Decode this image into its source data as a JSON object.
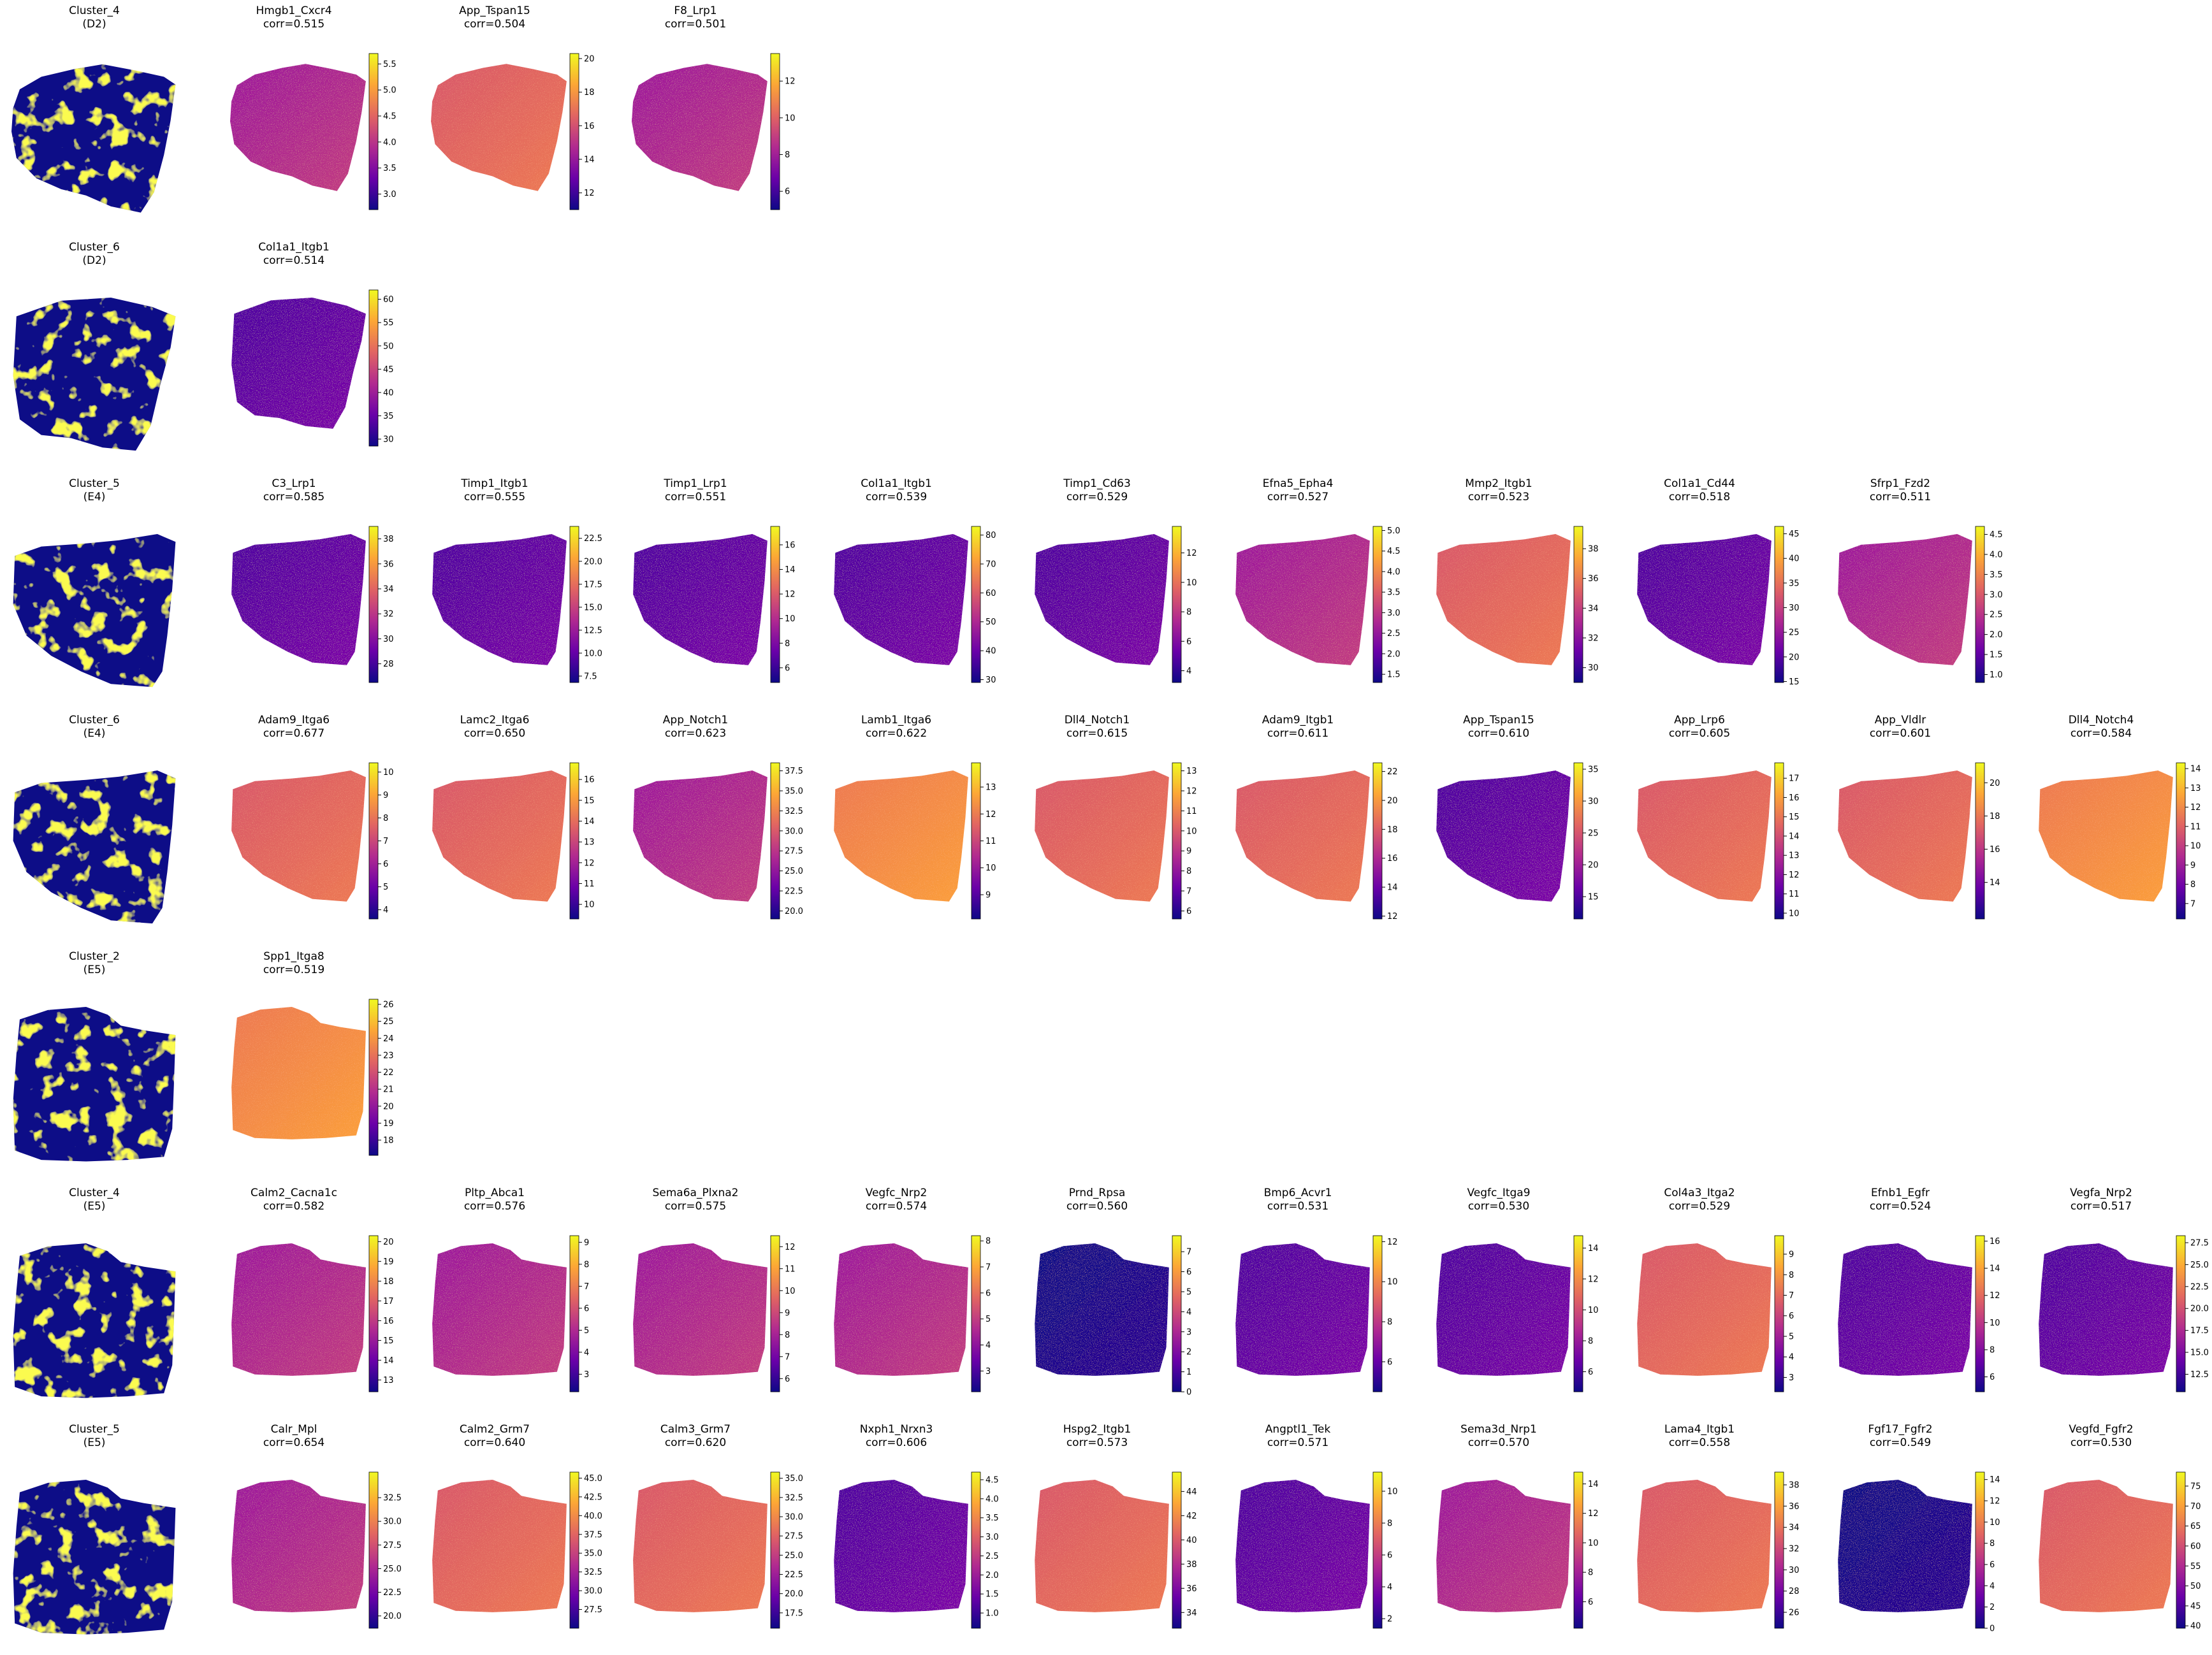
{
  "chart_data": {
    "type": "heatmap",
    "colormap": "plasma",
    "mask_colors": {
      "in_cluster": "#f5f514",
      "out_cluster": "#0d0887"
    },
    "rows": [
      {
        "cluster": {
          "name": "Cluster_4",
          "sample": "(D2)",
          "shape": "A"
        },
        "panels": [
          {
            "name": "Hmgb1_Cxcr4",
            "corr": "corr=0.515",
            "ticks": [
              "3.0",
              "3.5",
              "4.0",
              "4.5",
              "5.0",
              "5.5"
            ],
            "range": [
              2.7,
              5.7
            ],
            "tone": "m"
          },
          {
            "name": "App_Tspan15",
            "corr": "corr=0.504",
            "ticks": [
              "12",
              "14",
              "16",
              "18",
              "20"
            ],
            "range": [
              11,
              20.3
            ],
            "tone": "o"
          },
          {
            "name": "F8_Lrp1",
            "corr": "corr=0.501",
            "ticks": [
              "6",
              "8",
              "10",
              "12"
            ],
            "range": [
              5,
              13.5
            ],
            "tone": "m"
          }
        ]
      },
      {
        "cluster": {
          "name": "Cluster_6",
          "sample": "(D2)",
          "shape": "B"
        },
        "panels": [
          {
            "name": "Col1a1_Itgb1",
            "corr": "corr=0.514",
            "ticks": [
              "30",
              "35",
              "40",
              "45",
              "50",
              "55",
              "60"
            ],
            "range": [
              28.5,
              62
            ],
            "tone": "d"
          }
        ]
      },
      {
        "cluster": {
          "name": "Cluster_5",
          "sample": "(E4)",
          "shape": "C"
        },
        "panels": [
          {
            "name": "C3_Lrp1",
            "corr": "corr=0.585",
            "ticks": [
              "28",
              "30",
              "32",
              "34",
              "36",
              "38"
            ],
            "range": [
              26.5,
              39
            ],
            "tone": "d"
          },
          {
            "name": "Timp1_Itgb1",
            "corr": "corr=0.555",
            "ticks": [
              "7.5",
              "10.0",
              "12.5",
              "15.0",
              "17.5",
              "20.0",
              "22.5"
            ],
            "range": [
              6.8,
              23.8
            ],
            "tone": "d"
          },
          {
            "name": "Timp1_Lrp1",
            "corr": "corr=0.551",
            "ticks": [
              "6",
              "8",
              "10",
              "12",
              "14",
              "16"
            ],
            "range": [
              4.8,
              17.5
            ],
            "tone": "d"
          },
          {
            "name": "Col1a1_Itgb1",
            "corr": "corr=0.539",
            "ticks": [
              "30",
              "40",
              "50",
              "60",
              "70",
              "80"
            ],
            "range": [
              29,
              83
            ],
            "tone": "d"
          },
          {
            "name": "Timp1_Cd63",
            "corr": "corr=0.529",
            "ticks": [
              "4",
              "6",
              "8",
              "10",
              "12"
            ],
            "range": [
              3.2,
              13.8
            ],
            "tone": "d"
          },
          {
            "name": "Efna5_Epha4",
            "corr": "corr=0.527",
            "ticks": [
              "1.5",
              "2.0",
              "2.5",
              "3.0",
              "3.5",
              "4.0",
              "4.5",
              "5.0"
            ],
            "range": [
              1.3,
              5.1
            ],
            "tone": "m"
          },
          {
            "name": "Mmp2_Itgb1",
            "corr": "corr=0.523",
            "ticks": [
              "30",
              "32",
              "34",
              "36",
              "38"
            ],
            "range": [
              29,
              39.5
            ],
            "tone": "o"
          },
          {
            "name": "Col1a1_Cd44",
            "corr": "corr=0.518",
            "ticks": [
              "15",
              "20",
              "25",
              "30",
              "35",
              "40",
              "45"
            ],
            "range": [
              14.8,
              46.5
            ],
            "tone": "d"
          },
          {
            "name": "Sfrp1_Fzd2",
            "corr": "corr=0.511",
            "ticks": [
              "1.0",
              "1.5",
              "2.0",
              "2.5",
              "3.0",
              "3.5",
              "4.0",
              "4.5"
            ],
            "range": [
              0.8,
              4.7
            ],
            "tone": "m"
          }
        ]
      },
      {
        "cluster": {
          "name": "Cluster_6",
          "sample": "(E4)",
          "shape": "C"
        },
        "panels": [
          {
            "name": "Adam9_Itga6",
            "corr": "corr=0.677",
            "ticks": [
              "4",
              "5",
              "6",
              "7",
              "8",
              "9",
              "10"
            ],
            "range": [
              3.6,
              10.4
            ],
            "tone": "o"
          },
          {
            "name": "Lamc2_Itga6",
            "corr": "corr=0.650",
            "ticks": [
              "10",
              "11",
              "12",
              "13",
              "14",
              "15",
              "16"
            ],
            "range": [
              9.3,
              16.8
            ],
            "tone": "o"
          },
          {
            "name": "App_Notch1",
            "corr": "corr=0.623",
            "ticks": [
              "20.0",
              "22.5",
              "25.0",
              "27.5",
              "30.0",
              "32.5",
              "35.0",
              "37.5"
            ],
            "range": [
              19,
              38.5
            ],
            "tone": "m"
          },
          {
            "name": "Lamb1_Itga6",
            "corr": "corr=0.622",
            "ticks": [
              "9",
              "10",
              "11",
              "12",
              "13"
            ],
            "range": [
              8.1,
              13.9
            ],
            "tone": "y"
          },
          {
            "name": "Dll4_Notch1",
            "corr": "corr=0.615",
            "ticks": [
              "6",
              "7",
              "8",
              "9",
              "10",
              "11",
              "12",
              "13"
            ],
            "range": [
              5.6,
              13.4
            ],
            "tone": "o"
          },
          {
            "name": "Adam9_Itgb1",
            "corr": "corr=0.611",
            "ticks": [
              "12",
              "14",
              "16",
              "18",
              "20",
              "22"
            ],
            "range": [
              11.8,
              22.6
            ],
            "tone": "o"
          },
          {
            "name": "App_Tspan15",
            "corr": "corr=0.610",
            "ticks": [
              "15",
              "20",
              "25",
              "30",
              "35"
            ],
            "range": [
              11.5,
              36
            ],
            "tone": "d"
          },
          {
            "name": "App_Lrp6",
            "corr": "corr=0.605",
            "ticks": [
              "10",
              "11",
              "12",
              "13",
              "14",
              "15",
              "16",
              "17"
            ],
            "range": [
              9.7,
              17.8
            ],
            "tone": "o"
          },
          {
            "name": "App_Vldlr",
            "corr": "corr=0.601",
            "ticks": [
              "14",
              "16",
              "18",
              "20"
            ],
            "range": [
              11.8,
              21.2
            ],
            "tone": "o"
          },
          {
            "name": "Dll4_Notch4",
            "corr": "corr=0.584",
            "ticks": [
              "7",
              "8",
              "9",
              "10",
              "11",
              "12",
              "13",
              "14"
            ],
            "range": [
              6.2,
              14.3
            ],
            "tone": "y"
          }
        ]
      },
      {
        "cluster": {
          "name": "Cluster_2",
          "sample": "(E5)",
          "shape": "D"
        },
        "panels": [
          {
            "name": "Spp1_Itga8",
            "corr": "corr=0.519",
            "ticks": [
              "18",
              "19",
              "20",
              "21",
              "22",
              "23",
              "24",
              "25",
              "26"
            ],
            "range": [
              17.1,
              26.3
            ],
            "tone": "y"
          }
        ]
      },
      {
        "cluster": {
          "name": "Cluster_4",
          "sample": "(E5)",
          "shape": "D"
        },
        "panels": [
          {
            "name": "Calm2_Cacna1c",
            "corr": "corr=0.582",
            "ticks": [
              "13",
              "14",
              "15",
              "16",
              "17",
              "18",
              "19",
              "20"
            ],
            "range": [
              12.4,
              20.3
            ],
            "tone": "m"
          },
          {
            "name": "Pltp_Abca1",
            "corr": "corr=0.576",
            "ticks": [
              "3",
              "4",
              "5",
              "6",
              "7",
              "8",
              "9"
            ],
            "range": [
              2.2,
              9.3
            ],
            "tone": "m"
          },
          {
            "name": "Sema6a_Plxna2",
            "corr": "corr=0.575",
            "ticks": [
              "6",
              "7",
              "8",
              "9",
              "10",
              "11",
              "12"
            ],
            "range": [
              5.4,
              12.5
            ],
            "tone": "m"
          },
          {
            "name": "Vegfc_Nrp2",
            "corr": "corr=0.574",
            "ticks": [
              "3",
              "4",
              "5",
              "6",
              "7",
              "8"
            ],
            "range": [
              2.2,
              8.2
            ],
            "tone": "m"
          },
          {
            "name": "Prnd_Rpsa",
            "corr": "corr=0.560",
            "ticks": [
              "0",
              "1",
              "2",
              "3",
              "4",
              "5",
              "6",
              "7"
            ],
            "range": [
              0,
              7.8
            ],
            "tone": "b"
          },
          {
            "name": "Bmp6_Acvr1",
            "corr": "corr=0.531",
            "ticks": [
              "6",
              "8",
              "10",
              "12"
            ],
            "range": [
              4.5,
              12.3
            ],
            "tone": "d"
          },
          {
            "name": "Vegfc_Itga9",
            "corr": "corr=0.530",
            "ticks": [
              "6",
              "8",
              "10",
              "12",
              "14"
            ],
            "range": [
              4.7,
              14.8
            ],
            "tone": "d"
          },
          {
            "name": "Col4a3_Itga2",
            "corr": "corr=0.529",
            "ticks": [
              "3",
              "4",
              "5",
              "6",
              "7",
              "8",
              "9"
            ],
            "range": [
              2.3,
              9.9
            ],
            "tone": "o"
          },
          {
            "name": "Efnb1_Egfr",
            "corr": "corr=0.524",
            "ticks": [
              "6",
              "8",
              "10",
              "12",
              "14",
              "16"
            ],
            "range": [
              4.9,
              16.4
            ],
            "tone": "d"
          },
          {
            "name": "Vegfa_Nrp2",
            "corr": "corr=0.517",
            "ticks": [
              "12.5",
              "15.0",
              "17.5",
              "20.0",
              "22.5",
              "25.0",
              "27.5"
            ],
            "range": [
              10.5,
              28.3
            ],
            "tone": "d"
          }
        ]
      },
      {
        "cluster": {
          "name": "Cluster_5",
          "sample": "(E5)",
          "shape": "D"
        },
        "panels": [
          {
            "name": "Calr_Mpl",
            "corr": "corr=0.654",
            "ticks": [
              "20.0",
              "22.5",
              "25.0",
              "27.5",
              "30.0",
              "32.5"
            ],
            "range": [
              18.7,
              35.2
            ],
            "tone": "m"
          },
          {
            "name": "Calm2_Grm7",
            "corr": "corr=0.640",
            "ticks": [
              "27.5",
              "30.0",
              "32.5",
              "35.0",
              "37.5",
              "40.0",
              "42.5",
              "45.0"
            ],
            "range": [
              25,
              45.8
            ],
            "tone": "o"
          },
          {
            "name": "Calm3_Grm7",
            "corr": "corr=0.620",
            "ticks": [
              "17.5",
              "20.0",
              "22.5",
              "25.0",
              "27.5",
              "30.0",
              "32.5",
              "35.0"
            ],
            "range": [
              15.5,
              35.8
            ],
            "tone": "o"
          },
          {
            "name": "Nxph1_Nrxn3",
            "corr": "corr=0.606",
            "ticks": [
              "1.0",
              "1.5",
              "2.0",
              "2.5",
              "3.0",
              "3.5",
              "4.0",
              "4.5"
            ],
            "range": [
              0.6,
              4.7
            ],
            "tone": "d"
          },
          {
            "name": "Hspg2_Itgb1",
            "corr": "corr=0.573",
            "ticks": [
              "34",
              "36",
              "38",
              "40",
              "42",
              "44"
            ],
            "range": [
              32.7,
              45.6
            ],
            "tone": "o"
          },
          {
            "name": "Angptl1_Tek",
            "corr": "corr=0.571",
            "ticks": [
              "2",
              "4",
              "6",
              "8",
              "10"
            ],
            "range": [
              1.4,
              11.2
            ],
            "tone": "d"
          },
          {
            "name": "Sema3d_Nrp1",
            "corr": "corr=0.570",
            "ticks": [
              "6",
              "8",
              "10",
              "12",
              "14"
            ],
            "range": [
              4.2,
              14.8
            ],
            "tone": "m"
          },
          {
            "name": "Lama4_Itgb1",
            "corr": "corr=0.558",
            "ticks": [
              "26",
              "28",
              "30",
              "32",
              "34",
              "36",
              "38"
            ],
            "range": [
              24.5,
              39.2
            ],
            "tone": "o"
          },
          {
            "name": "Fgf17_Fgfr2",
            "corr": "corr=0.549",
            "ticks": [
              "0",
              "2",
              "4",
              "6",
              "8",
              "10",
              "12",
              "14"
            ],
            "range": [
              0,
              14.7
            ],
            "tone": "b"
          },
          {
            "name": "Vegfd_Fgfr2",
            "corr": "corr=0.530",
            "ticks": [
              "40",
              "45",
              "50",
              "55",
              "60",
              "65",
              "70",
              "75"
            ],
            "range": [
              39.4,
              78.5
            ],
            "tone": "o"
          }
        ]
      }
    ]
  }
}
